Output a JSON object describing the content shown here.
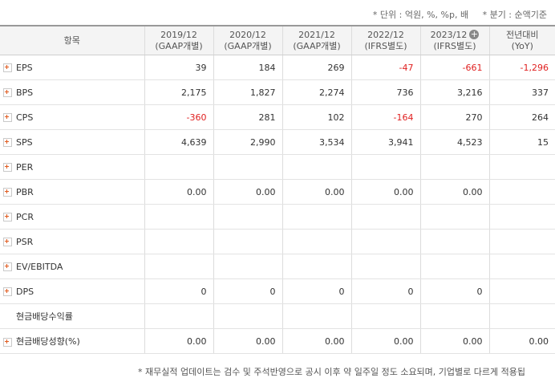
{
  "notes": {
    "unit": "* 단위 : 억원, %, %p, 배",
    "period": "* 분기 : 순액기준",
    "footer": "* 재무실적 업데이트는 검수 및 주석반영으로 공시 이후 약 일주일 정도 소요되며, 기업별로 다르게 적용됩"
  },
  "table": {
    "header": {
      "item": "항목",
      "cols": [
        {
          "line1": "2019/12",
          "line2": "(GAAP개별)"
        },
        {
          "line1": "2020/12",
          "line2": "(GAAP개별)"
        },
        {
          "line1": "2021/12",
          "line2": "(GAAP개별)"
        },
        {
          "line1": "2022/12",
          "line2": "(IFRS별도)"
        },
        {
          "line1": "2023/12",
          "line2": "(IFRS별도)"
        },
        {
          "line1": "전년대비",
          "line2": "(YoY)"
        }
      ]
    },
    "rows": [
      {
        "label": "EPS",
        "expand": true,
        "values": [
          "39",
          "184",
          "269",
          "-47",
          "-661",
          "-1,296"
        ]
      },
      {
        "label": "BPS",
        "expand": true,
        "values": [
          "2,175",
          "1,827",
          "2,274",
          "736",
          "3,216",
          "337"
        ]
      },
      {
        "label": "CPS",
        "expand": true,
        "values": [
          "-360",
          "281",
          "102",
          "-164",
          "270",
          "264"
        ]
      },
      {
        "label": "SPS",
        "expand": true,
        "values": [
          "4,639",
          "2,990",
          "3,534",
          "3,941",
          "4,523",
          "15"
        ]
      },
      {
        "label": "PER",
        "expand": true,
        "values": [
          "",
          "",
          "",
          "",
          "",
          ""
        ]
      },
      {
        "label": "PBR",
        "expand": true,
        "values": [
          "0.00",
          "0.00",
          "0.00",
          "0.00",
          "0.00",
          ""
        ]
      },
      {
        "label": "PCR",
        "expand": true,
        "values": [
          "",
          "",
          "",
          "",
          "",
          ""
        ]
      },
      {
        "label": "PSR",
        "expand": true,
        "values": [
          "",
          "",
          "",
          "",
          "",
          ""
        ]
      },
      {
        "label": "EV/EBITDA",
        "expand": true,
        "values": [
          "",
          "",
          "",
          "",
          "",
          ""
        ]
      },
      {
        "label": "DPS",
        "expand": true,
        "values": [
          "0",
          "0",
          "0",
          "0",
          "0",
          ""
        ]
      },
      {
        "label": "현금배당수익률",
        "expand": false,
        "values": [
          "",
          "",
          "",
          "",
          "",
          ""
        ]
      },
      {
        "label": "현금배당성향(%)",
        "expand": true,
        "values": [
          "0.00",
          "0.00",
          "0.00",
          "0.00",
          "0.00",
          "0.00"
        ]
      }
    ]
  },
  "colors": {
    "negative": "#e02020",
    "plus_icon": "#e05a1e"
  }
}
